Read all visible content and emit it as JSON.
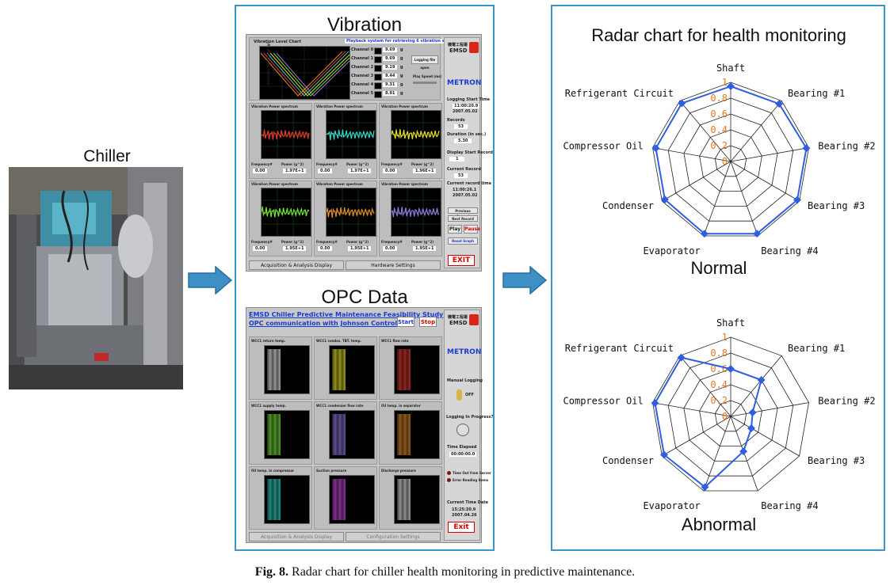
{
  "chiller": {
    "label": "Chiller"
  },
  "vibration": {
    "title": "Vibration",
    "chart_title": "Vibration Level Chart",
    "playback_label": "Playback system for retrieving 6 vibration signals",
    "y_axis_label": "Vibration RMS Level (g)",
    "channels": [
      {
        "name": "Channel 0",
        "value": "9.69"
      },
      {
        "name": "Channel 1",
        "value": "9.69"
      },
      {
        "name": "Channel 2",
        "value": "9.19"
      },
      {
        "name": "Channel 3",
        "value": "9.44"
      },
      {
        "name": "Channel 4",
        "value": "9.31"
      },
      {
        "name": "Channel 5",
        "value": "8.91"
      }
    ],
    "unit": "g",
    "logging_file_open": "Logging file open",
    "play_speed": "Play Speed (ms)",
    "spectrum_title": "Vibration Power spectrum",
    "spectrum_panels": [
      {
        "freq": "0.00",
        "power": "1.97E+1",
        "color": "#e23b2e"
      },
      {
        "freq": "0.00",
        "power": "1.97E+1",
        "color": "#33d6c9"
      },
      {
        "freq": "0.00",
        "power": "1.96E+1",
        "color": "#e6df2a"
      },
      {
        "freq": "0.00",
        "power": "1.95E+1",
        "color": "#76e23a"
      },
      {
        "freq": "0.00",
        "power": "1.95E+1",
        "color": "#e08a2e"
      },
      {
        "freq": "0.00",
        "power": "1.95E+1",
        "color": "#8f7be0"
      }
    ],
    "freq_label": "Frequency#",
    "power_label": "Power (g^2)",
    "logo_emsd": "EMSD",
    "logo_metron": "METRON",
    "logging_start_time_label": "Logging Start Time",
    "logging_start_time": "11:00:20.9",
    "logging_start_date": "2007.05.02",
    "records_label": "Records",
    "records": "53",
    "duration_label": "Duration (in sec.)",
    "duration": "5.30",
    "display_start_label": "Display Start Record",
    "display_start": "1",
    "current_record_label": "Current Record",
    "current_record": "53",
    "current_time_label": "Current record time",
    "current_time": "11:00:26.1",
    "current_date": "2007.05.02",
    "prev_record": "Previous Record",
    "next_record": "Next Record",
    "play": "Play",
    "pause": "Pause",
    "reset_graph": "Reset Graph",
    "exit": "EXIT",
    "tab1": "Acquisition & Analysis Display",
    "tab2": "Hardware Settings"
  },
  "opc": {
    "title": "OPC Data",
    "header_line1": "EMSD Chiller Predictive Maintenance Feasibility Study",
    "header_line2": "OPC communication with Johnson Control PLC",
    "start": "Start",
    "stop": "Stop",
    "logo_emsd": "EMSD",
    "logo_metron": "METRON",
    "graphs": [
      {
        "title": "WCC1 return temp.",
        "color": "#e8e8e8"
      },
      {
        "title": "WCC1 condss. TBT. temp.",
        "color": "#e6df2a"
      },
      {
        "title": "WCC1 flow rate",
        "color": "#e23b2e"
      },
      {
        "title": "WCC1 supply temp.",
        "color": "#76e23a"
      },
      {
        "title": "WCC1 condenser flow rate",
        "color": "#8f7be0"
      },
      {
        "title": "Oil temp. in separator",
        "color": "#e08a2e"
      },
      {
        "title": "Oil temp. in compressor",
        "color": "#33d6c9"
      },
      {
        "title": "Suction pressure",
        "color": "#c44ad8"
      },
      {
        "title": "Discharge pressure",
        "color": "#e0e0e0"
      }
    ],
    "manual_logging": "Manual Logging",
    "off": "OFF",
    "logging_in_progress": "Logging In Progress?",
    "time_elapsed_label": "Time Elapsed",
    "time_elapsed": "00:00:00.0",
    "time_out": "Time Out from Server",
    "error_reading": "Error Reading Items",
    "current_time_date": "Current Time Date",
    "current_time": "15:25:20.9",
    "current_date": "2007.04.26",
    "exit": "Exit",
    "tab1": "Acquisition & Analysis Display",
    "tab2": "Configuration Settings"
  },
  "radar": {
    "title": "Radar chart for health monitoring",
    "normal_label": "Normal",
    "abnormal_label": "Abnormal",
    "line_color": "#2f5fe0"
  },
  "chart_data": [
    {
      "type": "radar",
      "title": "Normal",
      "categories": [
        "Shaft",
        "Bearing #1",
        "Bearing #2",
        "Bearing #3",
        "Bearing #4",
        "Evaporator",
        "Condenser",
        "Compressor Oil",
        "Refrigerant Circuit"
      ],
      "ticks": [
        "0",
        "0.2",
        "0.4",
        "0.6",
        "0.8",
        "1"
      ],
      "rlim": [
        0,
        1
      ],
      "values": [
        0.95,
        0.95,
        0.97,
        0.97,
        0.97,
        0.97,
        0.96,
        0.96,
        0.96
      ]
    },
    {
      "type": "radar",
      "title": "Abnormal",
      "categories": [
        "Shaft",
        "Bearing #1",
        "Bearing #2",
        "Bearing #3",
        "Bearing #4",
        "Evaporator",
        "Condenser",
        "Compressor Oil",
        "Refrigerant Circuit"
      ],
      "ticks": [
        "0",
        "0.2",
        "0.4",
        "0.6",
        "0.8",
        "1"
      ],
      "rlim": [
        0,
        1
      ],
      "values": [
        0.6,
        0.6,
        0.28,
        0.3,
        0.47,
        0.95,
        0.97,
        0.97,
        0.97
      ]
    }
  ],
  "caption": {
    "bold": "Fig. 8.",
    "text": " Radar chart for chiller health monitoring in predictive maintenance."
  }
}
